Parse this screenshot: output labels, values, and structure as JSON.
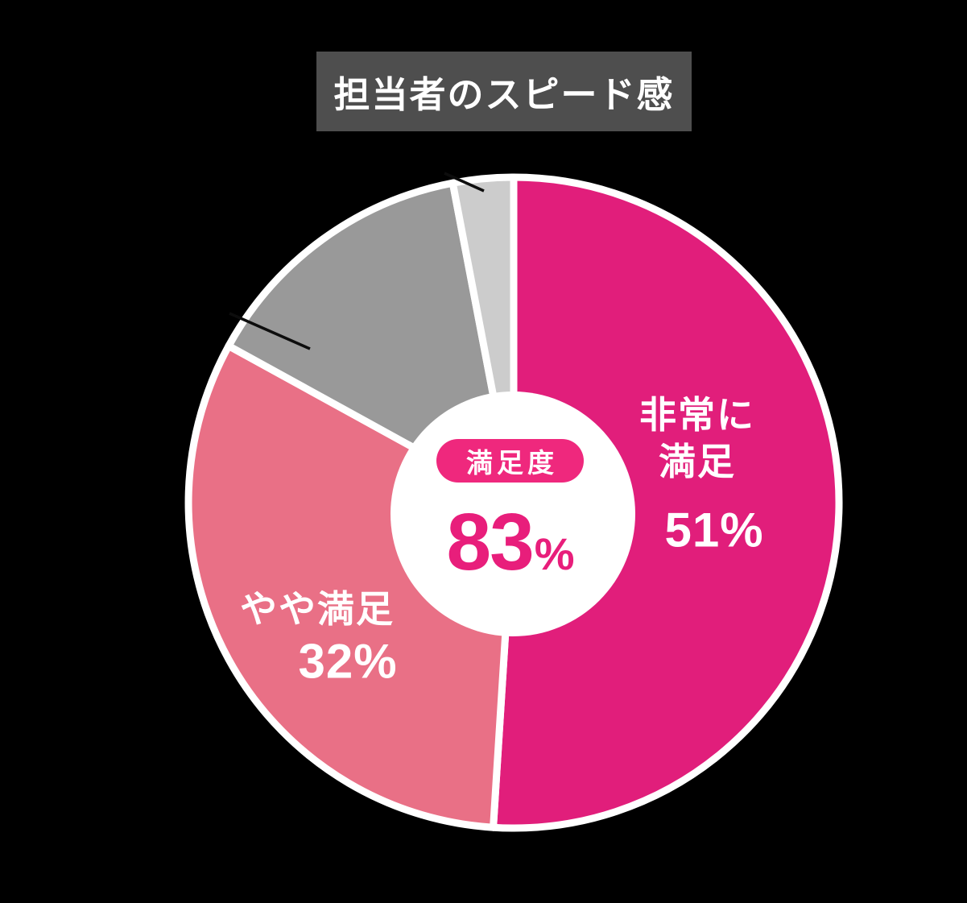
{
  "page": {
    "background": "#000000"
  },
  "title": {
    "text": "担当者のスピード感",
    "box_color": "#4E4E4E",
    "text_color": "#FFFFFF"
  },
  "center_badge": {
    "label": "満足度",
    "value": "83",
    "unit": "%",
    "pill_color": "#EF287D",
    "value_color": "#E81E7B",
    "hole_color": "#FFFFFF"
  },
  "chart_data": {
    "type": "pie",
    "title": "担当者のスピード感",
    "donut": true,
    "start_angle": "top",
    "direction": "clockwise",
    "total": 100,
    "legend_position": "none",
    "background": "#000000",
    "slice_separator_color": "#FFFFFF",
    "series": [
      {
        "name": "非常に満足",
        "value": 51,
        "label_lines": "非常に\n満足",
        "pct_label": "51%",
        "color": "#E11E7B",
        "label_color": "#FFFFFF",
        "value_estimated": false
      },
      {
        "name": "やや満足",
        "value": 32,
        "label_lines": "やや満足",
        "pct_label": "32%",
        "color": "#E97086",
        "label_color": "#FFFFFF",
        "value_estimated": false
      },
      {
        "name": "",
        "value": 14,
        "label_lines": "",
        "pct_label": "",
        "color": "#999999",
        "value_estimated": true
      },
      {
        "name": "",
        "value": 3,
        "label_lines": "",
        "pct_label": "",
        "color": "#CCCCCC",
        "value_estimated": true
      }
    ],
    "center_label": {
      "badge": "満足度",
      "value": "83%"
    }
  }
}
